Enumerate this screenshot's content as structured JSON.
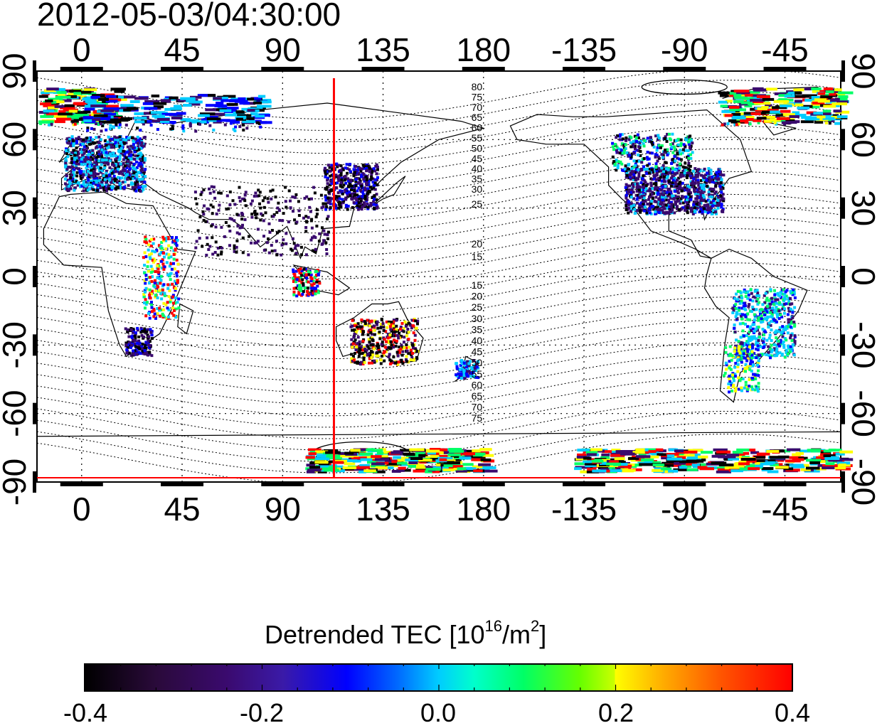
{
  "timestamp": "2012-05-03/04:30:00",
  "map": {
    "top_lon_labels": [
      "0",
      "45",
      "90",
      "135",
      "180",
      "-135",
      "-90",
      "-45"
    ],
    "bottom_lon_labels": [
      "0",
      "45",
      "90",
      "135",
      "180",
      "-135",
      "-90",
      "-45"
    ],
    "left_lat_labels": [
      "90",
      "60",
      "30",
      "0",
      "-30",
      "-60",
      "-90"
    ],
    "right_lat_labels": [
      "90",
      "60",
      "30",
      "0",
      "-30",
      "-60",
      "-90"
    ],
    "contour_labels_north": [
      "80",
      "75",
      "70",
      "65",
      "60",
      "55",
      "50",
      "45",
      "40",
      "35",
      "30",
      "25",
      "20",
      "15"
    ],
    "contour_labels_south": [
      "15",
      "20",
      "25",
      "30",
      "35",
      "40",
      "45",
      "50",
      "55",
      "60",
      "65",
      "70",
      "75"
    ],
    "marker_line_longitude": 113,
    "marker_line_color": "#ff0000",
    "map_type": "global equirectangular map with coastlines, dotted grid, geomagnetic latitude contours and detrended TEC color points"
  },
  "colorbar": {
    "title_prefix": "Detrended TEC  [10",
    "title_exp1": "16",
    "title_mid": "/m",
    "title_exp2": "2",
    "title_suffix": "]",
    "min": -0.4,
    "max": 0.4,
    "tick_labels": [
      "-0.4",
      "-0.2",
      "0.0",
      "0.2",
      "0.4"
    ],
    "colors": [
      "#000000",
      "#3a0a6e",
      "#0000ff",
      "#00ccff",
      "#00ff66",
      "#ffff00",
      "#ff0000"
    ]
  }
}
